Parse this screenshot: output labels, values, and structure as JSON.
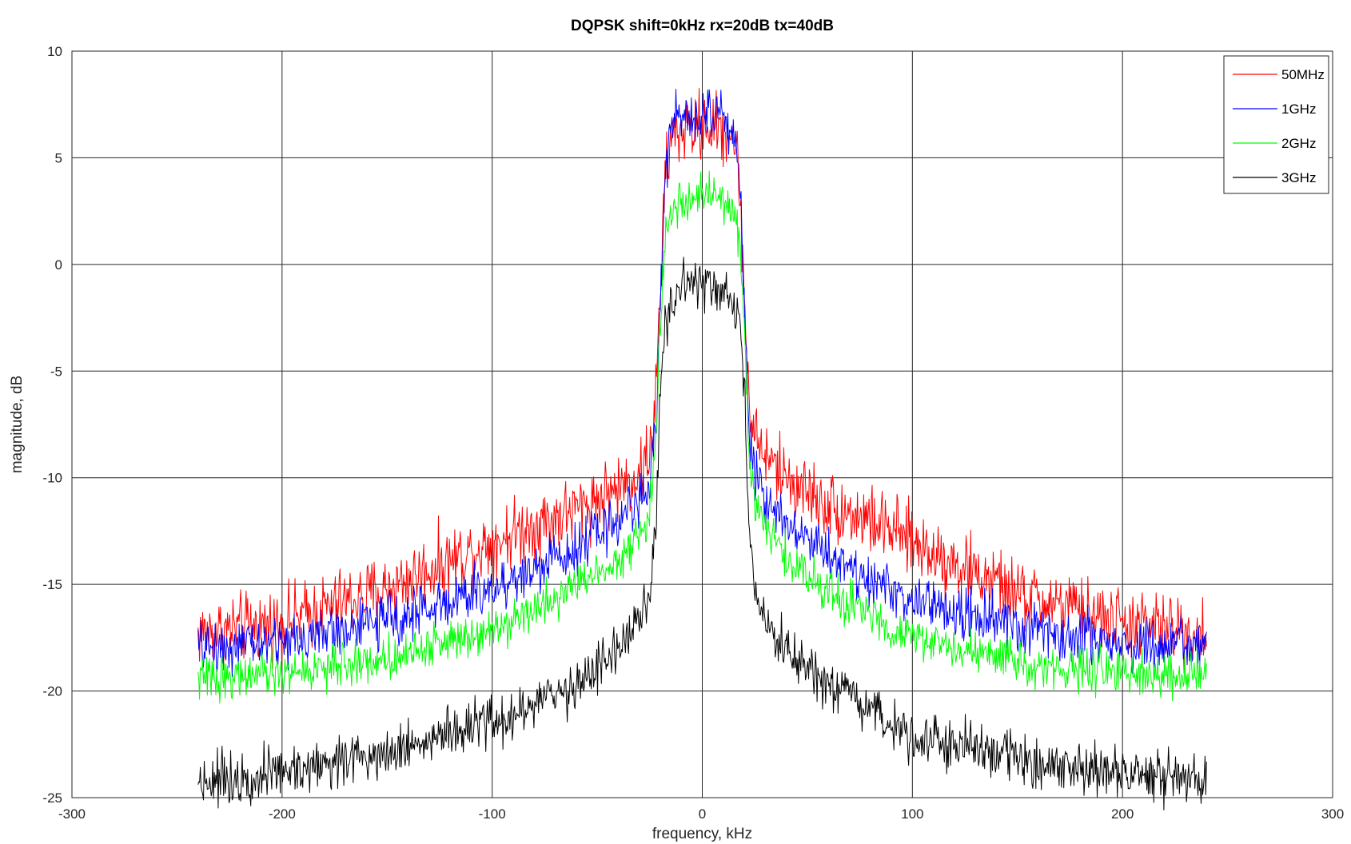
{
  "chart_data": {
    "type": "line",
    "title": "DQPSK shift=0kHz rx=20dB tx=40dB",
    "xlabel": "frequency, kHz",
    "ylabel": "magnitude, dB",
    "xlim": [
      -300,
      300
    ],
    "ylim": [
      -25,
      10
    ],
    "xticks": [
      -300,
      -200,
      -100,
      0,
      100,
      200,
      300
    ],
    "yticks": [
      -25,
      -20,
      -15,
      -10,
      -5,
      0,
      5,
      10
    ],
    "grid": true,
    "legend_position": "top-right",
    "x_range": [
      -240,
      240
    ],
    "series": [
      {
        "name": "50MHz",
        "color": "#ff0000",
        "noise_db": 0.8,
        "x": [
          -240,
          -200,
          -150,
          -100,
          -80,
          -60,
          -40,
          -30,
          -25,
          -22,
          -20,
          -18,
          -15,
          -10,
          0,
          10,
          15,
          18,
          20,
          22,
          25,
          30,
          40,
          60,
          80,
          100,
          150,
          200,
          240
        ],
        "y": [
          -17.3,
          -16.8,
          -15.2,
          -13.0,
          -12.2,
          -11.5,
          -10.5,
          -9.8,
          -8.8,
          -6.0,
          -1.5,
          3.5,
          6.0,
          6.3,
          6.5,
          6.3,
          6.0,
          3.5,
          -1.5,
          -6.0,
          -8.0,
          -9.0,
          -10.0,
          -11.3,
          -12.0,
          -13.0,
          -15.5,
          -16.8,
          -17.3
        ]
      },
      {
        "name": "1GHz",
        "color": "#0000ff",
        "noise_db": 0.6,
        "x": [
          -240,
          -200,
          -150,
          -100,
          -80,
          -60,
          -40,
          -30,
          -25,
          -22,
          -20,
          -18,
          -15,
          -10,
          0,
          10,
          15,
          18,
          20,
          22,
          25,
          30,
          40,
          60,
          80,
          100,
          150,
          200,
          240
        ],
        "y": [
          -18.0,
          -17.7,
          -16.7,
          -15.2,
          -14.3,
          -13.2,
          -12.0,
          -11.0,
          -10.3,
          -7.5,
          -2.0,
          3.5,
          6.5,
          7.0,
          7.2,
          7.0,
          6.5,
          3.5,
          -2.0,
          -7.5,
          -9.8,
          -11.0,
          -12.0,
          -13.5,
          -14.8,
          -15.8,
          -17.0,
          -17.8,
          -18.0
        ]
      },
      {
        "name": "2GHz",
        "color": "#00ff00",
        "noise_db": 0.5,
        "x": [
          -240,
          -200,
          -150,
          -100,
          -80,
          -60,
          -40,
          -30,
          -25,
          -22,
          -20,
          -18,
          -15,
          -10,
          0,
          10,
          15,
          18,
          20,
          22,
          25,
          30,
          40,
          60,
          80,
          100,
          150,
          200,
          240
        ],
        "y": [
          -19.4,
          -19.2,
          -18.5,
          -17.0,
          -16.2,
          -15.0,
          -13.8,
          -12.8,
          -11.5,
          -8.5,
          -3.0,
          1.0,
          2.5,
          3.0,
          3.2,
          3.0,
          2.5,
          1.0,
          -3.0,
          -8.5,
          -11.0,
          -12.3,
          -13.8,
          -15.3,
          -16.5,
          -17.5,
          -18.7,
          -19.2,
          -19.4
        ]
      },
      {
        "name": "3GHz",
        "color": "#000000",
        "noise_db": 0.6,
        "x": [
          -240,
          -200,
          -150,
          -100,
          -80,
          -60,
          -40,
          -30,
          -25,
          -22,
          -20,
          -18,
          -15,
          -10,
          0,
          10,
          15,
          18,
          20,
          22,
          25,
          30,
          40,
          60,
          80,
          100,
          150,
          200,
          240
        ],
        "y": [
          -24.2,
          -23.8,
          -22.8,
          -21.5,
          -20.7,
          -19.7,
          -18.0,
          -16.8,
          -15.8,
          -12.0,
          -5.5,
          -3.0,
          -2.0,
          -1.2,
          -1.0,
          -1.2,
          -2.0,
          -3.0,
          -5.5,
          -12.0,
          -15.8,
          -17.0,
          -18.2,
          -19.8,
          -21.0,
          -22.0,
          -23.2,
          -23.9,
          -24.2
        ]
      }
    ]
  }
}
